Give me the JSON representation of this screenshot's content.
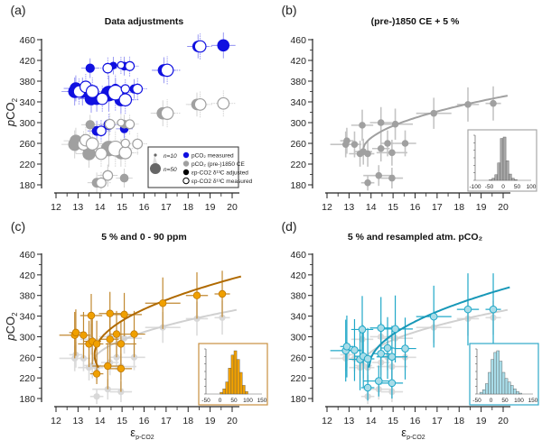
{
  "chart_data": [
    {
      "panel": "(a)",
      "type": "scatter",
      "title": "Data adjustments",
      "xlabel": "",
      "ylabel": "pCO2",
      "xlim": [
        12,
        20
      ],
      "ylim": [
        180,
        460
      ],
      "xticks": [
        12,
        13,
        14,
        15,
        16,
        17,
        18,
        19,
        20
      ],
      "yticks": [
        180,
        220,
        260,
        300,
        340,
        380,
        420,
        460
      ],
      "colors": {
        "measured": "#1010e0",
        "preindustrial": "#a0a0a0"
      },
      "legend": {
        "position": "bottom-right",
        "size_labels": [
          "n=10",
          "n=50"
        ],
        "entries": [
          {
            "label": "pCO₂ measured",
            "marker": "filled",
            "color": "#1010e0"
          },
          {
            "label": "pCO₂ (pre-)1850 CE",
            "marker": "filled",
            "color": "#a0a0a0"
          },
          {
            "label": "εp-CO2 δ¹³C adjusted",
            "marker": "filled",
            "color": "#000000"
          },
          {
            "label": "εp-CO2 δ¹³C measured",
            "marker": "open",
            "color": "#000000"
          }
        ]
      },
      "series": [
        {
          "name": "pCO2 measured, adjusted",
          "style": "filled",
          "color": "#1010e0",
          "points": [
            [
              12.85,
              360,
              30
            ],
            [
              12.9,
              366,
              25
            ],
            [
              13.2,
              360,
              30
            ],
            [
              13.55,
              405,
              10
            ],
            [
              13.6,
              346,
              30
            ],
            [
              13.85,
              346,
              25
            ],
            [
              14.4,
              356,
              50
            ],
            [
              14.95,
              344,
              30
            ],
            [
              14.7,
              366,
              10
            ],
            [
              15.1,
              409,
              8
            ],
            [
              15.55,
              365,
              10
            ],
            [
              13.85,
              284,
              12
            ],
            [
              15.1,
              288,
              8
            ],
            [
              14.6,
              410,
              5
            ],
            [
              16.9,
              401,
              25
            ],
            [
              18.45,
              447,
              20
            ],
            [
              19.6,
              449,
              25
            ]
          ]
        },
        {
          "name": "pCO2 measured, measured d13C",
          "style": "open",
          "color": "#1010e0",
          "points": [
            [
              13.05,
              360,
              25
            ],
            [
              13.35,
              369,
              25
            ],
            [
              13.65,
              360,
              30
            ],
            [
              14.1,
              346,
              25
            ],
            [
              14.7,
              358,
              50
            ],
            [
              15.15,
              344,
              30
            ],
            [
              14.35,
              405,
              15
            ],
            [
              15.35,
              409,
              12
            ],
            [
              15.7,
              365,
              15
            ],
            [
              14.05,
              284,
              15
            ],
            [
              14.4,
              296,
              15
            ],
            [
              15.15,
              365,
              10
            ],
            [
              17.05,
              401,
              30
            ],
            [
              18.55,
              447,
              25
            ],
            [
              14.95,
              411,
              5
            ]
          ]
        },
        {
          "name": "pCO2 pre-1850, adjusted",
          "style": "filled",
          "color": "#a0a0a0",
          "points": [
            [
              12.85,
              258,
              30
            ],
            [
              12.9,
              265,
              25
            ],
            [
              13.5,
              240,
              30
            ],
            [
              13.55,
              296,
              10
            ],
            [
              14.4,
              250,
              50
            ],
            [
              14.95,
              242,
              30
            ],
            [
              13.85,
              184,
              12
            ],
            [
              14.35,
              198,
              15
            ],
            [
              15.1,
              193,
              8
            ],
            [
              15.1,
              297,
              8
            ],
            [
              16.85,
              318,
              25
            ],
            [
              18.4,
              335,
              20
            ]
          ]
        },
        {
          "name": "pCO2 pre-1850, measured d13C",
          "style": "open",
          "color": "#a0a0a0",
          "points": [
            [
              13.25,
              258,
              25
            ],
            [
              13.35,
              266,
              25
            ],
            [
              13.65,
              259,
              30
            ],
            [
              14.05,
              240,
              25
            ],
            [
              14.7,
              250,
              50
            ],
            [
              15.15,
              242,
              30
            ],
            [
              15.15,
              260,
              10
            ],
            [
              15.7,
              259,
              15
            ],
            [
              14.05,
              184,
              15
            ],
            [
              14.35,
              198,
              15
            ],
            [
              14.45,
              297,
              15
            ],
            [
              15.35,
              297,
              12
            ],
            [
              14.95,
              300,
              5
            ],
            [
              17.05,
              318,
              30
            ],
            [
              18.55,
              335,
              25
            ],
            [
              19.6,
              337,
              25
            ]
          ]
        }
      ]
    },
    {
      "panel": "(b)",
      "type": "scatter",
      "title": "(pre-)1850 CE + 5 %",
      "xlabel": "",
      "ylabel": "",
      "xlim": [
        12,
        20
      ],
      "ylim": [
        180,
        460
      ],
      "xticks": [
        12,
        13,
        14,
        15,
        16,
        17,
        18,
        19,
        20
      ],
      "yticks": [
        180,
        220,
        260,
        300,
        340,
        380,
        420,
        460
      ],
      "color": "#a0a0a0",
      "points": [
        [
          12.85,
          258
        ],
        [
          12.9,
          265
        ],
        [
          13.25,
          258
        ],
        [
          13.5,
          240
        ],
        [
          13.6,
          295
        ],
        [
          13.65,
          244
        ],
        [
          13.85,
          240
        ],
        [
          13.85,
          184
        ],
        [
          14.35,
          198
        ],
        [
          14.45,
          300
        ],
        [
          14.45,
          250
        ],
        [
          14.75,
          260
        ],
        [
          14.95,
          242
        ],
        [
          14.95,
          193
        ],
        [
          15.1,
          297
        ],
        [
          15.55,
          260
        ],
        [
          16.85,
          318
        ],
        [
          18.4,
          335
        ],
        [
          19.55,
          337
        ]
      ],
      "x_err": [
        0.7,
        0.3,
        0.3,
        0.5,
        0.5,
        0.4,
        0.3,
        0.3,
        0.7,
        0.5,
        0.4,
        0.3,
        0.7,
        0.5,
        0.8,
        0.5,
        0.8,
        0.5,
        0.35
      ],
      "y_err": [
        25,
        25,
        25,
        25,
        30,
        25,
        25,
        15,
        20,
        30,
        25,
        25,
        25,
        20,
        30,
        25,
        30,
        33,
        33
      ],
      "fit_curve": {
        "x_start": 13.6,
        "x_end": 20.2,
        "y_at_start": 244,
        "y_at_end": 352,
        "color": "#a0a0a0"
      },
      "inset_histogram": {
        "xlim": [
          -100,
          100
        ],
        "xticks": [
          -100,
          -50,
          0,
          50,
          100
        ],
        "color": "#a0a0a0",
        "bins": [
          -45,
          -35,
          -25,
          -15,
          -5,
          5,
          15,
          25,
          35,
          45
        ],
        "counts": [
          1,
          3,
          8,
          25,
          60,
          62,
          28,
          9,
          3,
          1
        ]
      }
    },
    {
      "panel": "(c)",
      "type": "scatter",
      "title": "5 % and 0 - 90 ppm",
      "xlabel": "εp-CO2",
      "ylabel": "pCO2",
      "xlim": [
        12,
        20
      ],
      "ylim": [
        180,
        460
      ],
      "xticks": [
        12,
        13,
        14,
        15,
        16,
        17,
        18,
        19,
        20
      ],
      "yticks": [
        180,
        220,
        260,
        300,
        340,
        380,
        420,
        460
      ],
      "color": "#f0a000",
      "error_color": "#c08830",
      "points": [
        [
          12.85,
          303
        ],
        [
          12.9,
          308
        ],
        [
          13.25,
          303
        ],
        [
          13.5,
          286
        ],
        [
          13.6,
          341
        ],
        [
          13.65,
          291
        ],
        [
          13.85,
          286
        ],
        [
          13.85,
          228
        ],
        [
          14.35,
          243
        ],
        [
          14.45,
          345
        ],
        [
          14.45,
          295
        ],
        [
          14.75,
          305
        ],
        [
          14.95,
          286
        ],
        [
          14.95,
          238
        ],
        [
          15.1,
          343
        ],
        [
          15.55,
          305
        ],
        [
          16.85,
          365
        ],
        [
          18.4,
          380
        ],
        [
          19.55,
          383
        ]
      ],
      "x_err": [
        0.7,
        0.3,
        0.3,
        0.5,
        0.5,
        0.4,
        0.3,
        0.3,
        0.7,
        0.5,
        0.4,
        0.3,
        0.7,
        0.5,
        0.8,
        0.5,
        0.8,
        0.5,
        0.35
      ],
      "y_err": [
        45,
        45,
        45,
        45,
        42,
        45,
        45,
        20,
        45,
        42,
        45,
        45,
        45,
        45,
        42,
        45,
        50,
        45,
        45
      ],
      "fit_curve": {
        "vertex_x": 13.75,
        "vertex_y": 265,
        "y_low": 240,
        "x_end": 20.4,
        "y_at_end": 417,
        "color": "#b06a00"
      },
      "reference_curve_color": "#d0d0d0",
      "inset_histogram": {
        "xlim": [
          -50,
          150
        ],
        "xticks": [
          -50,
          0,
          50,
          100,
          150
        ],
        "color": "#f0a000",
        "bins": [
          5,
          15,
          25,
          35,
          45,
          55,
          65,
          75,
          85,
          95
        ],
        "counts": [
          2,
          6,
          14,
          30,
          45,
          50,
          40,
          25,
          10,
          3
        ]
      }
    },
    {
      "panel": "(d)",
      "type": "scatter",
      "title": "5 % and resampled atm. pCO₂",
      "xlabel": "εp-CO2",
      "ylabel": "",
      "xlim": [
        12,
        20
      ],
      "ylim": [
        180,
        460
      ],
      "xticks": [
        12,
        13,
        14,
        15,
        16,
        17,
        18,
        19,
        20
      ],
      "yticks": [
        180,
        220,
        260,
        300,
        340,
        380,
        420,
        460
      ],
      "color": "#a8dce8",
      "error_color": "#20a8c8",
      "points": [
        [
          12.85,
          273
        ],
        [
          12.9,
          281
        ],
        [
          13.25,
          274
        ],
        [
          13.5,
          256
        ],
        [
          13.6,
          314
        ],
        [
          13.65,
          262
        ],
        [
          13.85,
          257
        ],
        [
          13.85,
          201
        ],
        [
          14.35,
          214
        ],
        [
          14.45,
          317
        ],
        [
          14.45,
          267
        ],
        [
          14.75,
          278
        ],
        [
          14.95,
          261
        ],
        [
          14.95,
          210
        ],
        [
          15.1,
          315
        ],
        [
          15.55,
          277
        ],
        [
          16.85,
          339
        ],
        [
          18.4,
          353
        ],
        [
          19.55,
          353
        ]
      ],
      "x_err": [
        0.7,
        0.3,
        0.3,
        0.5,
        0.5,
        0.4,
        0.3,
        0.3,
        0.7,
        0.5,
        0.4,
        0.3,
        0.7,
        0.5,
        0.8,
        0.5,
        0.8,
        0.5,
        0.35
      ],
      "y_err": [
        60,
        60,
        60,
        60,
        65,
        60,
        60,
        25,
        30,
        60,
        60,
        60,
        60,
        30,
        65,
        60,
        60,
        70,
        70
      ],
      "fit_curve": {
        "x_start": 13.9,
        "y_at_start": 240,
        "x_end": 20.3,
        "y_at_end": 396,
        "color": "#1898b8"
      },
      "reference_curve_color": "#d0d0d0",
      "inset_histogram": {
        "xlim": [
          -50,
          150
        ],
        "xticks": [
          -50,
          0,
          50,
          100,
          150
        ],
        "color": "#a8dce8",
        "bins": [
          -35,
          -25,
          -15,
          -5,
          5,
          15,
          25,
          35,
          45,
          55,
          65,
          75,
          85,
          95,
          105
        ],
        "counts": [
          2,
          5,
          12,
          25,
          40,
          48,
          50,
          38,
          25,
          18,
          14,
          10,
          6,
          3,
          1
        ]
      }
    }
  ],
  "panel_labels": [
    "(a)",
    "(b)",
    "(c)",
    "(d)"
  ]
}
